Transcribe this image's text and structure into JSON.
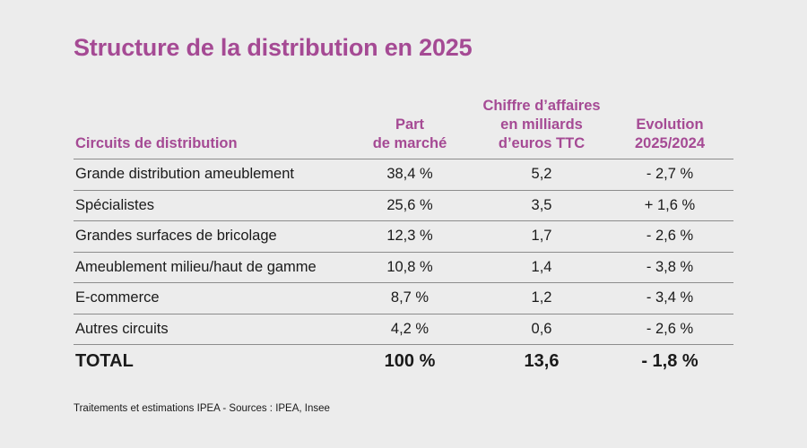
{
  "title": "Structure de la distribution en 2025",
  "columns": [
    "Circuits de distribution",
    "Part\nde marché",
    "Chiffre d’affaires\nen milliards\nd’euros TTC",
    "Evolution\n2025/2024"
  ],
  "rows": [
    {
      "circuit": "Grande distribution ameublement",
      "part": "38,4 %",
      "ca": "5,2",
      "evolution": "- 2,7 %"
    },
    {
      "circuit": "Spécialistes",
      "part": "25,6 %",
      "ca": "3,5",
      "evolution": "+ 1,6 %"
    },
    {
      "circuit": "Grandes surfaces de bricolage",
      "part": "12,3 %",
      "ca": "1,7",
      "evolution": "- 2,6 %"
    },
    {
      "circuit": "Ameublement milieu/haut de gamme",
      "part": "10,8 %",
      "ca": "1,4",
      "evolution": "- 3,8 %"
    },
    {
      "circuit": "E-commerce",
      "part": "8,7 %",
      "ca": "1,2",
      "evolution": "- 3,4 %"
    },
    {
      "circuit": "Autres circuits",
      "part": "4,2 %",
      "ca": "0,6",
      "evolution": "- 2,6 %"
    }
  ],
  "total": {
    "circuit": "TOTAL",
    "part": "100 %",
    "ca": "13,6",
    "evolution": "- 1,8 %"
  },
  "source": "Traitements et estimations IPEA - Sources : IPEA, Insee",
  "colors": {
    "accent": "#a54a94",
    "background": "#ececec",
    "rule": "#8c8c8c"
  }
}
